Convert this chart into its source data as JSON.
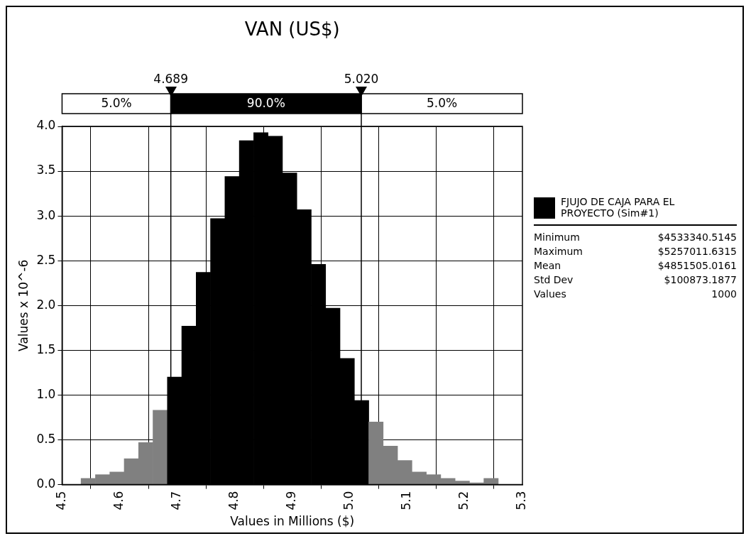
{
  "chart_data": {
    "type": "histogram",
    "title": "VAN (US$)",
    "xlabel": "Values in Millions ($)",
    "ylabel": "Values x 10^-6",
    "bins": [
      4.533,
      4.558,
      4.583,
      4.608,
      4.633,
      4.658,
      4.683,
      4.708,
      4.733,
      4.758,
      4.783,
      4.808,
      4.833,
      4.858,
      4.883,
      4.908,
      4.933,
      4.958,
      4.983,
      5.008,
      5.033,
      5.058,
      5.083,
      5.108,
      5.133,
      5.158,
      5.183,
      5.208,
      5.233,
      5.258
    ],
    "series": [
      {
        "name": "FJUJO  DE CAJA PARA EL PROYECTO (Sim#1)",
        "color": "#000000",
        "colors": [
          "#808080",
          "#808080",
          "#808080",
          "#808080",
          "#808080",
          "#808080",
          "#000000",
          "#000000",
          "#000000",
          "#000000",
          "#000000",
          "#000000",
          "#000000",
          "#000000",
          "#000000",
          "#000000",
          "#000000",
          "#000000",
          "#000000",
          "#000000",
          "#808080",
          "#808080",
          "#808080",
          "#808080",
          "#808080",
          "#808080",
          "#808080",
          "#808080",
          "#808080"
        ],
        "values": [
          0.07,
          0.11,
          0.14,
          0.29,
          0.47,
          0.83,
          1.2,
          1.77,
          2.37,
          2.97,
          3.44,
          3.84,
          3.93,
          3.89,
          3.48,
          3.07,
          2.46,
          1.97,
          1.41,
          0.94,
          0.7,
          0.43,
          0.27,
          0.14,
          0.11,
          0.07,
          0.04,
          0.02,
          0.07
        ]
      }
    ],
    "xlim": [
      4.5,
      5.3
    ],
    "xticks": [
      4.5,
      4.6,
      4.7,
      4.8,
      4.9,
      {
        "value": 5.0,
        "label": "5.0"
      },
      5.1,
      5.2,
      5.3
    ],
    "ylim": [
      0,
      4
    ],
    "yticks": [
      {
        "value": 0,
        "label": "0.0"
      },
      {
        "value": 0.5,
        "label": "0.5"
      },
      {
        "value": 1,
        "label": "1.0"
      },
      {
        "value": 1.5,
        "label": "1.5"
      },
      {
        "value": 2,
        "label": "2.0"
      },
      {
        "value": 2.5,
        "label": "2.5"
      },
      {
        "value": 3,
        "label": "3.0"
      },
      {
        "value": 3.5,
        "label": "3.5"
      },
      {
        "value": 4,
        "label": "4.0"
      }
    ],
    "ref_lines": [
      {
        "axis": "x",
        "value": 4.689,
        "label": "4.689"
      },
      {
        "axis": "x",
        "value": 5.02,
        "label": "5.020"
      }
    ],
    "annotations": [
      "5.0%",
      "90.0%",
      "5.0%",
      "Minimum $4533340.5145",
      "Maximum $5257011.6315",
      "Mean $4851505.0161",
      "Std Dev $100873.1877",
      "Values 1000"
    ],
    "grid": true,
    "legend": "right"
  }
}
